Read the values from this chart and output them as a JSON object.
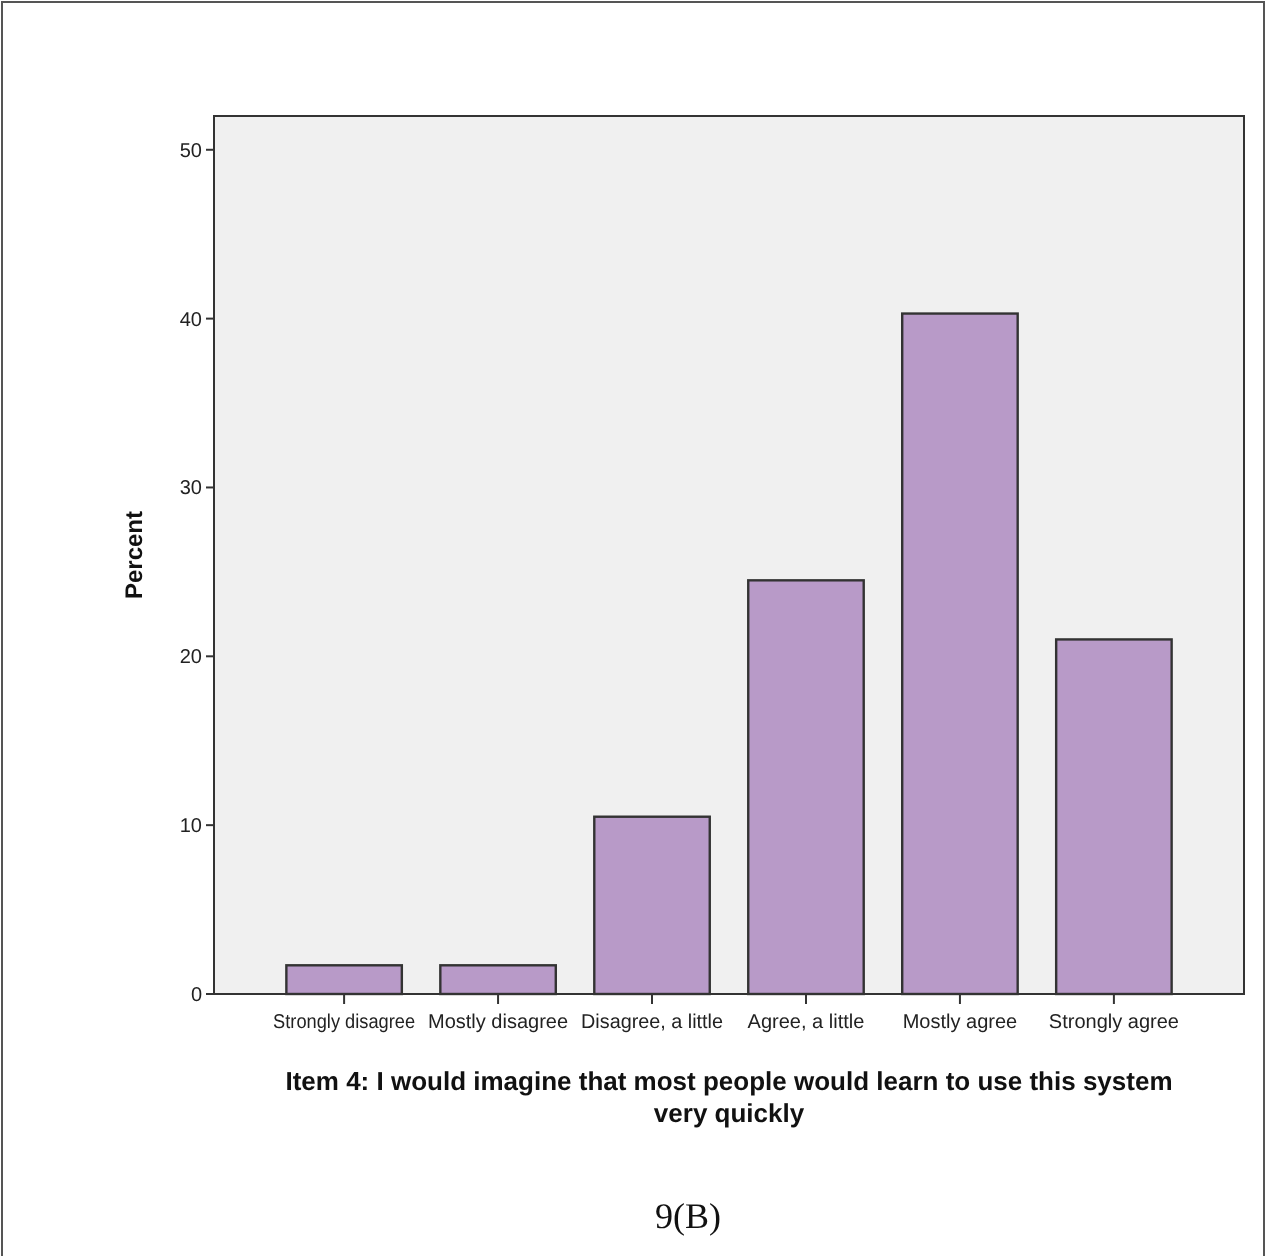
{
  "chart_data": {
    "type": "bar",
    "xlabel": "Item 4: I would imagine that most people would learn to use this system very quickly",
    "ylabel": "Percent",
    "categories": [
      "Strongly disagree",
      "Mostly disagree",
      "Disagree, a little",
      "Agree, a little",
      "Mostly agree",
      "Strongly agree"
    ],
    "values": [
      1.7,
      1.7,
      10.5,
      24.5,
      40.3,
      21.0
    ],
    "color": "#b89ac8",
    "ylim": [
      0,
      52
    ],
    "yticks": [
      0,
      10,
      20,
      30,
      40,
      50
    ],
    "grid": false,
    "annotations": [
      "9(B)"
    ]
  }
}
